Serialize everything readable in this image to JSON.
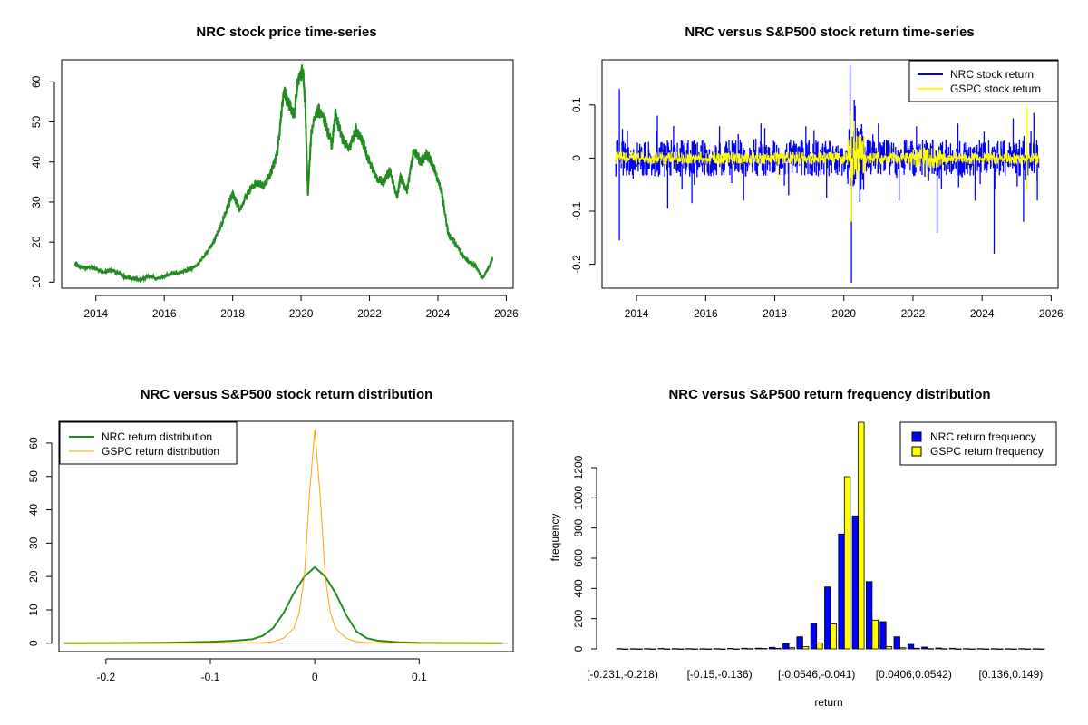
{
  "colors": {
    "nrc_price": "#228b22",
    "nrc_return": "#0000ff",
    "gspc_return": "#ffff00",
    "nrc_density": "#228b22",
    "gspc_density": "#ffa500",
    "nrc_bar": "#0000ff",
    "gspc_bar": "#ffff00",
    "zero_line": "#bebebe"
  },
  "chart_data": [
    {
      "type": "line",
      "title": "NRC stock price time-series",
      "xlabel": "",
      "ylabel": "",
      "xlim": [
        2013.0,
        2026.2
      ],
      "ylim": [
        8.5,
        65.5
      ],
      "xticks": [
        2014,
        2016,
        2018,
        2020,
        2022,
        2024,
        2026
      ],
      "yticks": [
        10,
        20,
        30,
        40,
        50,
        60
      ],
      "series": [
        {
          "x": [
            2013.4,
            2013.6,
            2013.9,
            2014.2,
            2014.5,
            2014.8,
            2015.0,
            2015.3,
            2015.5,
            2015.8,
            2016.0,
            2016.2,
            2016.5,
            2016.8,
            2017.0,
            2017.2,
            2017.5,
            2017.7,
            2017.9,
            2018.0,
            2018.2,
            2018.5,
            2018.7,
            2018.9,
            2019.1,
            2019.3,
            2019.5,
            2019.6,
            2019.8,
            2019.9,
            2020.05,
            2020.12,
            2020.2,
            2020.3,
            2020.5,
            2020.7,
            2020.9,
            2021.0,
            2021.2,
            2021.4,
            2021.6,
            2021.8,
            2022.0,
            2022.2,
            2022.4,
            2022.6,
            2022.8,
            2022.9,
            2023.1,
            2023.3,
            2023.5,
            2023.7,
            2023.9,
            2024.1,
            2024.3,
            2024.5,
            2024.7,
            2024.9,
            2025.1,
            2025.3,
            2025.45,
            2025.6
          ],
          "y": [
            14.5,
            13.5,
            13.8,
            12.5,
            13.0,
            11.5,
            11.0,
            10.5,
            11.5,
            11.0,
            11.5,
            12.0,
            12.5,
            13.5,
            14.5,
            17.0,
            21.0,
            25.0,
            30.0,
            32.0,
            28.0,
            33.0,
            35.0,
            34.0,
            37.0,
            42.0,
            58.0,
            55.0,
            52.0,
            60.0,
            63.0,
            55.0,
            32.0,
            48.0,
            53.0,
            50.0,
            44.0,
            52.0,
            46.0,
            43.0,
            48.0,
            45.0,
            40.0,
            36.0,
            35.0,
            38.0,
            31.0,
            36.0,
            33.0,
            43.0,
            40.0,
            42.0,
            38.0,
            33.0,
            22.0,
            20.0,
            17.0,
            15.0,
            14.0,
            11.0,
            13.0,
            16.0
          ]
        }
      ]
    },
    {
      "type": "line",
      "title": "NRC versus S&P500 stock return time-series",
      "xlabel": "",
      "ylabel": "",
      "xlim": [
        2013.0,
        2026.2
      ],
      "ylim": [
        -0.245,
        0.185
      ],
      "xticks": [
        2014,
        2016,
        2018,
        2020,
        2022,
        2024,
        2026
      ],
      "yticks": [
        -0.2,
        -0.1,
        0.0,
        0.1
      ],
      "legend_position": "top-right",
      "series": [
        {
          "name": "NRC stock return",
          "spikes": [
            [
              2013.5,
              0.13
            ],
            [
              2013.5,
              -0.155
            ],
            [
              2014.6,
              0.08
            ],
            [
              2014.9,
              -0.095
            ],
            [
              2015.6,
              -0.085
            ],
            [
              2016.4,
              0.06
            ],
            [
              2017.1,
              -0.08
            ],
            [
              2017.6,
              0.065
            ],
            [
              2018.4,
              -0.07
            ],
            [
              2018.9,
              0.06
            ],
            [
              2019.5,
              -0.075
            ],
            [
              2020.18,
              0.175
            ],
            [
              2020.22,
              -0.235
            ],
            [
              2020.3,
              0.11
            ],
            [
              2021.0,
              0.065
            ],
            [
              2021.6,
              -0.08
            ],
            [
              2022.1,
              0.06
            ],
            [
              2022.7,
              -0.14
            ],
            [
              2023.3,
              0.065
            ],
            [
              2023.8,
              -0.08
            ],
            [
              2024.35,
              -0.18
            ],
            [
              2024.9,
              0.075
            ],
            [
              2025.2,
              -0.12
            ],
            [
              2025.5,
              0.085
            ],
            [
              2025.6,
              -0.08
            ]
          ]
        },
        {
          "name": "GSPC stock return",
          "spikes": [
            [
              2018.1,
              -0.04
            ],
            [
              2020.2,
              0.09
            ],
            [
              2020.22,
              -0.12
            ],
            [
              2020.3,
              0.07
            ],
            [
              2022.4,
              -0.04
            ],
            [
              2025.3,
              0.095
            ],
            [
              2025.3,
              -0.06
            ]
          ]
        }
      ]
    },
    {
      "type": "line",
      "title": "NRC versus S&P500 stock return distribution",
      "xlabel": "",
      "ylabel": "",
      "xlim": [
        -0.245,
        0.19
      ],
      "ylim": [
        -2.5,
        66.5
      ],
      "xticks": [
        -0.2,
        -0.1,
        0.0,
        0.1
      ],
      "yticks": [
        0,
        10,
        20,
        30,
        40,
        50,
        60
      ],
      "legend_position": "top-left",
      "series": [
        {
          "name": "NRC return distribution",
          "x": [
            -0.24,
            -0.15,
            -0.1,
            -0.08,
            -0.06,
            -0.05,
            -0.04,
            -0.03,
            -0.02,
            -0.01,
            0.0,
            0.01,
            0.02,
            0.03,
            0.04,
            0.05,
            0.06,
            0.08,
            0.1,
            0.13,
            0.18
          ],
          "y": [
            0,
            0.1,
            0.4,
            0.7,
            1.2,
            2.2,
            4.5,
            9.0,
            15.0,
            20.0,
            22.8,
            20.0,
            15.0,
            8.5,
            3.5,
            1.5,
            0.8,
            0.3,
            0.1,
            0.05,
            0
          ]
        },
        {
          "name": "GSPC return distribution",
          "x": [
            -0.24,
            -0.1,
            -0.05,
            -0.04,
            -0.03,
            -0.02,
            -0.015,
            -0.01,
            -0.005,
            0.0,
            0.005,
            0.01,
            0.015,
            0.02,
            0.03,
            0.04,
            0.05,
            0.1,
            0.18
          ],
          "y": [
            0,
            0,
            0.2,
            0.5,
            1.5,
            4.5,
            9.0,
            20.0,
            45.0,
            64.0,
            45.0,
            20.0,
            9.0,
            4.5,
            1.5,
            0.5,
            0.2,
            0,
            0
          ]
        }
      ]
    },
    {
      "type": "bar",
      "title": "NRC versus S&P500 return frequency distribution",
      "xlabel": "return",
      "ylabel": "frequency",
      "ylim": [
        0,
        1500
      ],
      "yticks": [
        0,
        200,
        400,
        600,
        800,
        1000,
        1200
      ],
      "legend_position": "top-right",
      "category_labels_shown": [
        "[-0.231,-0.218)",
        "[-0.15,-0.136)",
        "[-0.0546,-0.041)",
        "[0.0406,0.0542)",
        "[0.136,0.149)"
      ],
      "label_every": 7,
      "series": [
        {
          "name": "NRC return frequency",
          "values": [
            2,
            1,
            2,
            3,
            2,
            2,
            1,
            2,
            3,
            4,
            5,
            10,
            35,
            80,
            165,
            410,
            760,
            880,
            445,
            180,
            80,
            30,
            12,
            6,
            4,
            2,
            2,
            1,
            1,
            2,
            1
          ]
        },
        {
          "name": "GSPC return frequency",
          "values": [
            0,
            0,
            0,
            0,
            0,
            0,
            0,
            0,
            0,
            2,
            3,
            4,
            8,
            15,
            40,
            165,
            1140,
            1500,
            190,
            15,
            8,
            4,
            2,
            1,
            0,
            0,
            0,
            0,
            0,
            0,
            0
          ]
        }
      ]
    }
  ]
}
